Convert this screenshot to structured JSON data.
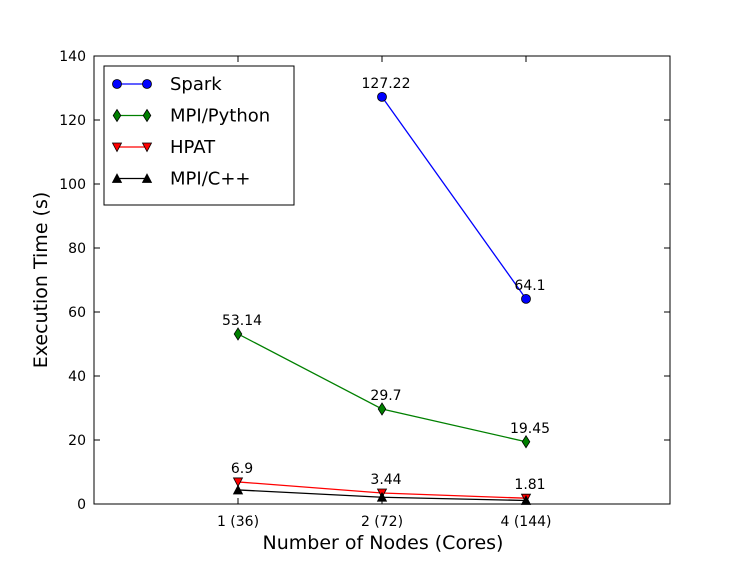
{
  "chart_data": {
    "type": "line",
    "title": "",
    "xlabel": "Number of Nodes (Cores)",
    "ylabel": "Execution Time (s)",
    "categories": [
      "1 (36)",
      "2 (72)",
      "4 (144)"
    ],
    "xlim": [
      0,
      4
    ],
    "ylim": [
      0,
      140
    ],
    "yticks": [
      "0",
      "20",
      "40",
      "60",
      "80",
      "100",
      "120",
      "140"
    ],
    "grid": false,
    "legend_position": "top-left",
    "series": [
      {
        "name": "Spark",
        "color": "#0000ff",
        "marker": "circle",
        "points": [
          {
            "category": "2 (72)",
            "value": 127.22,
            "label": "127.22"
          },
          {
            "category": "4 (144)",
            "value": 64.1,
            "label": "64.1"
          }
        ]
      },
      {
        "name": "MPI/Python",
        "color": "#008000",
        "marker": "diamond",
        "points": [
          {
            "category": "1 (36)",
            "value": 53.14,
            "label": "53.14"
          },
          {
            "category": "2 (72)",
            "value": 29.7,
            "label": "29.7"
          },
          {
            "category": "4 (144)",
            "value": 19.45,
            "label": "19.45"
          }
        ]
      },
      {
        "name": "HPAT",
        "color": "#ff0000",
        "marker": "triangle-down",
        "points": [
          {
            "category": "1 (36)",
            "value": 6.9,
            "label": "6.9"
          },
          {
            "category": "2 (72)",
            "value": 3.44,
            "label": "3.44"
          },
          {
            "category": "4 (144)",
            "value": 1.81,
            "label": "1.81"
          }
        ]
      },
      {
        "name": "MPI/C++",
        "color": "#000000",
        "marker": "triangle-up",
        "points": [
          {
            "category": "1 (36)",
            "value": 4.4
          },
          {
            "category": "2 (72)",
            "value": 2.1
          },
          {
            "category": "4 (144)",
            "value": 1.1
          }
        ]
      }
    ]
  }
}
